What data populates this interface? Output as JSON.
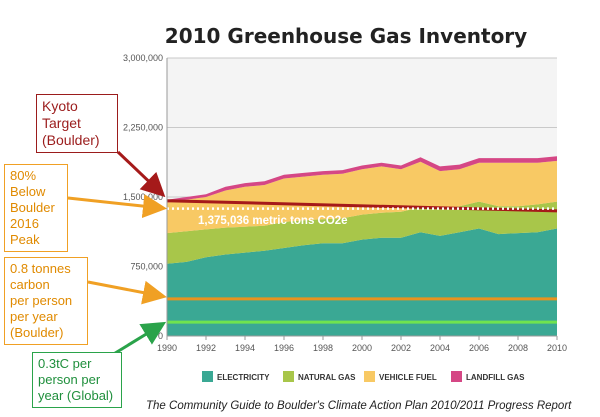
{
  "chart_data": {
    "type": "area",
    "title": "2010 Greenhouse Gas Inventory",
    "x": [
      1990,
      1991,
      1992,
      1993,
      1994,
      1995,
      1996,
      1997,
      1998,
      1999,
      2000,
      2001,
      2002,
      2003,
      2004,
      2005,
      2006,
      2007,
      2008,
      2009,
      2010
    ],
    "x_ticks": [
      "1990",
      "1992",
      "1994",
      "1996",
      "1998",
      "2000",
      "2002",
      "2004",
      "2006",
      "2008",
      "2010"
    ],
    "y_ticks": [
      "0",
      "750,000",
      "1,500,000",
      "2,250,000",
      "3,000,000"
    ],
    "ylim": [
      0,
      3000000
    ],
    "stacked": true,
    "series": [
      {
        "name": "ELECTRICITY",
        "color": "#3aa894",
        "values": [
          780000,
          800000,
          850000,
          880000,
          900000,
          920000,
          950000,
          980000,
          1000000,
          1000000,
          1040000,
          1060000,
          1060000,
          1120000,
          1080000,
          1120000,
          1160000,
          1100000,
          1110000,
          1120000,
          1160000
        ]
      },
      {
        "name": "NATURAL GAS",
        "color": "#a8c64a",
        "values": [
          330000,
          330000,
          300000,
          290000,
          280000,
          270000,
          280000,
          270000,
          260000,
          270000,
          270000,
          270000,
          280000,
          270000,
          290000,
          280000,
          290000,
          300000,
          290000,
          300000,
          290000
        ]
      },
      {
        "name": "VEHICLE FUEL",
        "color": "#f8c964",
        "values": [
          330000,
          340000,
          350000,
          400000,
          430000,
          440000,
          470000,
          470000,
          480000,
          480000,
          490000,
          500000,
          460000,
          490000,
          410000,
          400000,
          420000,
          470000,
          470000,
          450000,
          440000
        ]
      },
      {
        "name": "LANDFILL GAS",
        "color": "#d54785",
        "values": [
          30000,
          30000,
          30000,
          40000,
          40000,
          40000,
          40000,
          40000,
          40000,
          40000,
          40000,
          40000,
          40000,
          50000,
          50000,
          50000,
          50000,
          50000,
          50000,
          50000,
          50000
        ]
      }
    ],
    "reference_lines": [
      {
        "name": "Kyoto Target (Boulder)",
        "color": "#a51a1a",
        "values": [
          1460000,
          1350000
        ]
      },
      {
        "name": "80% Below Boulder 2016 Peak",
        "color": "#ffffff",
        "style": "dotted",
        "value": 1375036,
        "label": "1,375,036 metric tons CO2e"
      },
      {
        "name": "0.8 tonnes carbon per person per year (Boulder)",
        "color": "#e8931e",
        "value": 400000
      },
      {
        "name": "0.3tC per person per year (Global)",
        "color": "#6fe34f",
        "value": 150000
      }
    ]
  },
  "callouts": {
    "kyoto": "Kyoto\nTarget\n(Boulder)",
    "peak": "80%\nBelow\nBoulder\n2016\nPeak",
    "tonnes": "0.8 tonnes\ncarbon\nper person\nper year\n(Boulder)",
    "global": "0.3tC per\nperson per\nyear (Global)"
  },
  "caption": "The Community Guide to Boulder's Climate Action Plan 2010/2011 Progress Report"
}
